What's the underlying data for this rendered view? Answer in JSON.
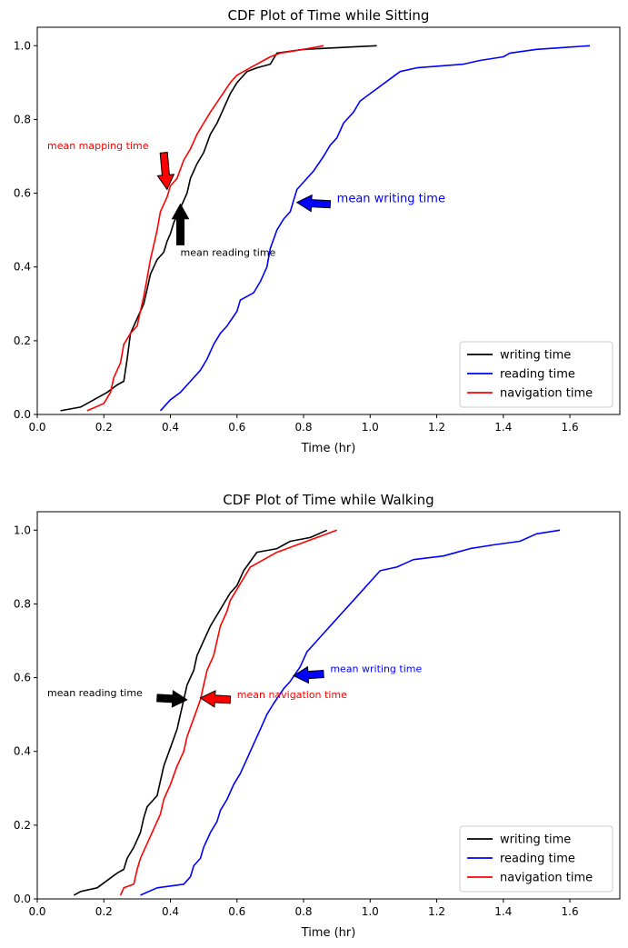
{
  "chart_data": [
    {
      "type": "line",
      "title": "CDF Plot of Time while Sitting",
      "xlabel": "Time (hr)",
      "ylabel": "",
      "xlim": [
        0,
        1.75
      ],
      "ylim": [
        0,
        1.05
      ],
      "xticks": [
        "0.0",
        "0.2",
        "0.4",
        "0.6",
        "0.8",
        "1.0",
        "1.2",
        "1.4",
        "1.6"
      ],
      "yticks": [
        "0.0",
        "0.2",
        "0.4",
        "0.6",
        "0.8",
        "1.0"
      ],
      "legend": "lower-right",
      "series": [
        {
          "name": "writing time",
          "color": "#000000",
          "points": [
            [
              0.07,
              0.01
            ],
            [
              0.13,
              0.02
            ],
            [
              0.17,
              0.04
            ],
            [
              0.21,
              0.06
            ],
            [
              0.24,
              0.08
            ],
            [
              0.26,
              0.09
            ],
            [
              0.27,
              0.15
            ],
            [
              0.28,
              0.22
            ],
            [
              0.3,
              0.26
            ],
            [
              0.32,
              0.3
            ],
            [
              0.33,
              0.34
            ],
            [
              0.34,
              0.38
            ],
            [
              0.36,
              0.42
            ],
            [
              0.38,
              0.44
            ],
            [
              0.39,
              0.47
            ],
            [
              0.4,
              0.49
            ],
            [
              0.41,
              0.52
            ],
            [
              0.43,
              0.56
            ],
            [
              0.45,
              0.6
            ],
            [
              0.46,
              0.64
            ],
            [
              0.48,
              0.68
            ],
            [
              0.5,
              0.71
            ],
            [
              0.52,
              0.76
            ],
            [
              0.54,
              0.79
            ],
            [
              0.56,
              0.83
            ],
            [
              0.58,
              0.87
            ],
            [
              0.6,
              0.9
            ],
            [
              0.63,
              0.93
            ],
            [
              0.66,
              0.94
            ],
            [
              0.7,
              0.95
            ],
            [
              0.72,
              0.98
            ],
            [
              0.8,
              0.99
            ],
            [
              1.02,
              1.0
            ]
          ]
        },
        {
          "name": "reading time",
          "color": "#0000ff",
          "points": [
            [
              0.37,
              0.01
            ],
            [
              0.4,
              0.04
            ],
            [
              0.43,
              0.06
            ],
            [
              0.46,
              0.09
            ],
            [
              0.49,
              0.12
            ],
            [
              0.51,
              0.15
            ],
            [
              0.53,
              0.19
            ],
            [
              0.55,
              0.22
            ],
            [
              0.57,
              0.24
            ],
            [
              0.6,
              0.28
            ],
            [
              0.61,
              0.31
            ],
            [
              0.65,
              0.33
            ],
            [
              0.67,
              0.36
            ],
            [
              0.69,
              0.4
            ],
            [
              0.7,
              0.45
            ],
            [
              0.72,
              0.5
            ],
            [
              0.74,
              0.53
            ],
            [
              0.76,
              0.55
            ],
            [
              0.77,
              0.58
            ],
            [
              0.78,
              0.61
            ],
            [
              0.8,
              0.63
            ],
            [
              0.83,
              0.66
            ],
            [
              0.86,
              0.7
            ],
            [
              0.88,
              0.73
            ],
            [
              0.9,
              0.75
            ],
            [
              0.92,
              0.79
            ],
            [
              0.95,
              0.82
            ],
            [
              0.97,
              0.85
            ],
            [
              1.0,
              0.87
            ],
            [
              1.03,
              0.89
            ],
            [
              1.06,
              0.91
            ],
            [
              1.09,
              0.93
            ],
            [
              1.14,
              0.94
            ],
            [
              1.28,
              0.95
            ],
            [
              1.33,
              0.96
            ],
            [
              1.4,
              0.97
            ],
            [
              1.42,
              0.98
            ],
            [
              1.5,
              0.99
            ],
            [
              1.66,
              1.0
            ]
          ]
        },
        {
          "name": "navigation time",
          "color": "#ff0000",
          "points": [
            [
              0.15,
              0.01
            ],
            [
              0.2,
              0.03
            ],
            [
              0.22,
              0.06
            ],
            [
              0.23,
              0.1
            ],
            [
              0.25,
              0.14
            ],
            [
              0.26,
              0.19
            ],
            [
              0.28,
              0.22
            ],
            [
              0.3,
              0.24
            ],
            [
              0.31,
              0.28
            ],
            [
              0.32,
              0.32
            ],
            [
              0.33,
              0.37
            ],
            [
              0.34,
              0.42
            ],
            [
              0.35,
              0.46
            ],
            [
              0.36,
              0.5
            ],
            [
              0.37,
              0.55
            ],
            [
              0.39,
              0.59
            ],
            [
              0.4,
              0.62
            ],
            [
              0.42,
              0.64
            ],
            [
              0.44,
              0.69
            ],
            [
              0.46,
              0.72
            ],
            [
              0.48,
              0.76
            ],
            [
              0.5,
              0.79
            ],
            [
              0.52,
              0.82
            ],
            [
              0.55,
              0.86
            ],
            [
              0.58,
              0.9
            ],
            [
              0.6,
              0.92
            ],
            [
              0.64,
              0.94
            ],
            [
              0.68,
              0.96
            ],
            [
              0.7,
              0.97
            ],
            [
              0.73,
              0.98
            ],
            [
              0.8,
              0.99
            ],
            [
              0.86,
              1.0
            ]
          ]
        }
      ],
      "annotations": [
        {
          "text": "mean mapping time",
          "color": "#ff0000",
          "size": 11,
          "anchor": "start",
          "textXY": [
            0.03,
            0.72
          ],
          "arrowFrom": [
            0.38,
            0.71
          ],
          "arrowTo": [
            0.39,
            0.61
          ]
        },
        {
          "text": "mean reading time",
          "color": "#000000",
          "size": 11,
          "anchor": "start",
          "textXY": [
            0.43,
            0.43
          ],
          "arrowFrom": [
            0.43,
            0.46
          ],
          "arrowTo": [
            0.43,
            0.57
          ]
        },
        {
          "text": "mean writing time",
          "color": "#0000ff",
          "size": 13,
          "anchor": "start",
          "textXY": [
            0.9,
            0.575
          ],
          "arrowFrom": [
            0.88,
            0.57
          ],
          "arrowTo": [
            0.78,
            0.575
          ]
        }
      ]
    },
    {
      "type": "line",
      "title": "CDF Plot of Time while Walking",
      "xlabel": "Time (hr)",
      "ylabel": "",
      "xlim": [
        0,
        1.75
      ],
      "ylim": [
        0,
        1.05
      ],
      "xticks": [
        "0.0",
        "0.2",
        "0.4",
        "0.6",
        "0.8",
        "1.0",
        "1.2",
        "1.4",
        "1.6"
      ],
      "yticks": [
        "0.0",
        "0.2",
        "0.4",
        "0.6",
        "0.8",
        "1.0"
      ],
      "legend": "lower-right",
      "series": [
        {
          "name": "writing time",
          "color": "#000000",
          "points": [
            [
              0.11,
              0.01
            ],
            [
              0.13,
              0.02
            ],
            [
              0.18,
              0.03
            ],
            [
              0.21,
              0.05
            ],
            [
              0.24,
              0.07
            ],
            [
              0.26,
              0.08
            ],
            [
              0.27,
              0.11
            ],
            [
              0.29,
              0.14
            ],
            [
              0.31,
              0.18
            ],
            [
              0.32,
              0.22
            ],
            [
              0.33,
              0.25
            ],
            [
              0.36,
              0.28
            ],
            [
              0.37,
              0.32
            ],
            [
              0.38,
              0.36
            ],
            [
              0.4,
              0.41
            ],
            [
              0.42,
              0.46
            ],
            [
              0.43,
              0.5
            ],
            [
              0.44,
              0.54
            ],
            [
              0.45,
              0.58
            ],
            [
              0.47,
              0.62
            ],
            [
              0.48,
              0.66
            ],
            [
              0.5,
              0.7
            ],
            [
              0.52,
              0.74
            ],
            [
              0.54,
              0.77
            ],
            [
              0.56,
              0.8
            ],
            [
              0.58,
              0.83
            ],
            [
              0.6,
              0.85
            ],
            [
              0.62,
              0.89
            ],
            [
              0.66,
              0.94
            ],
            [
              0.72,
              0.95
            ],
            [
              0.76,
              0.97
            ],
            [
              0.82,
              0.98
            ],
            [
              0.87,
              1.0
            ]
          ]
        },
        {
          "name": "reading time",
          "color": "#0000ff",
          "points": [
            [
              0.31,
              0.01
            ],
            [
              0.36,
              0.03
            ],
            [
              0.44,
              0.04
            ],
            [
              0.46,
              0.06
            ],
            [
              0.47,
              0.09
            ],
            [
              0.49,
              0.11
            ],
            [
              0.5,
              0.14
            ],
            [
              0.52,
              0.18
            ],
            [
              0.54,
              0.21
            ],
            [
              0.55,
              0.24
            ],
            [
              0.57,
              0.27
            ],
            [
              0.59,
              0.31
            ],
            [
              0.61,
              0.34
            ],
            [
              0.63,
              0.38
            ],
            [
              0.65,
              0.42
            ],
            [
              0.67,
              0.46
            ],
            [
              0.69,
              0.5
            ],
            [
              0.71,
              0.53
            ],
            [
              0.74,
              0.57
            ],
            [
              0.76,
              0.59
            ],
            [
              0.79,
              0.63
            ],
            [
              0.81,
              0.67
            ],
            [
              0.84,
              0.7
            ],
            [
              0.86,
              0.72
            ],
            [
              0.89,
              0.75
            ],
            [
              0.92,
              0.78
            ],
            [
              0.95,
              0.81
            ],
            [
              0.98,
              0.84
            ],
            [
              1.0,
              0.86
            ],
            [
              1.03,
              0.89
            ],
            [
              1.08,
              0.9
            ],
            [
              1.13,
              0.92
            ],
            [
              1.22,
              0.93
            ],
            [
              1.3,
              0.95
            ],
            [
              1.37,
              0.96
            ],
            [
              1.45,
              0.97
            ],
            [
              1.5,
              0.99
            ],
            [
              1.57,
              1.0
            ]
          ]
        },
        {
          "name": "navigation time",
          "color": "#ff0000",
          "points": [
            [
              0.25,
              0.01
            ],
            [
              0.26,
              0.03
            ],
            [
              0.29,
              0.04
            ],
            [
              0.3,
              0.08
            ],
            [
              0.31,
              0.11
            ],
            [
              0.33,
              0.15
            ],
            [
              0.35,
              0.19
            ],
            [
              0.37,
              0.23
            ],
            [
              0.38,
              0.27
            ],
            [
              0.4,
              0.31
            ],
            [
              0.42,
              0.36
            ],
            [
              0.44,
              0.4
            ],
            [
              0.45,
              0.44
            ],
            [
              0.47,
              0.49
            ],
            [
              0.49,
              0.54
            ],
            [
              0.5,
              0.58
            ],
            [
              0.51,
              0.62
            ],
            [
              0.53,
              0.66
            ],
            [
              0.54,
              0.7
            ],
            [
              0.55,
              0.74
            ],
            [
              0.57,
              0.78
            ],
            [
              0.58,
              0.81
            ],
            [
              0.6,
              0.84
            ],
            [
              0.62,
              0.87
            ],
            [
              0.64,
              0.9
            ],
            [
              0.68,
              0.92
            ],
            [
              0.72,
              0.94
            ],
            [
              0.78,
              0.96
            ],
            [
              0.84,
              0.98
            ],
            [
              0.9,
              1.0
            ]
          ]
        }
      ],
      "annotations": [
        {
          "text": "mean reading time",
          "color": "#000000",
          "size": 11,
          "anchor": "start",
          "textXY": [
            0.03,
            0.55
          ],
          "arrowFrom": [
            0.36,
            0.545
          ],
          "arrowTo": [
            0.45,
            0.54
          ]
        },
        {
          "text": "mean navigation time",
          "color": "#ff0000",
          "size": 11,
          "anchor": "start",
          "textXY": [
            0.6,
            0.545
          ],
          "arrowFrom": [
            0.58,
            0.54
          ],
          "arrowTo": [
            0.49,
            0.545
          ]
        },
        {
          "text": "mean writing time",
          "color": "#0000ff",
          "size": 11,
          "anchor": "start",
          "textXY": [
            0.88,
            0.615
          ],
          "arrowFrom": [
            0.86,
            0.61
          ],
          "arrowTo": [
            0.77,
            0.605
          ]
        }
      ]
    }
  ]
}
